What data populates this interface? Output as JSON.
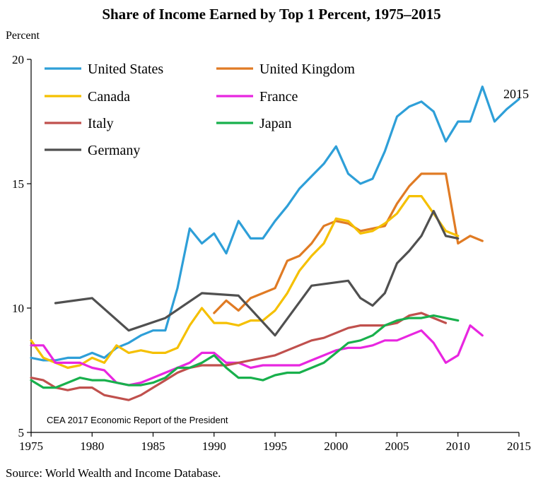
{
  "chart_data": {
    "type": "line",
    "title": "Share of Income Earned by Top 1 Percent, 1975–2015",
    "ylabel": "Percent",
    "xlabel": "",
    "xlim": [
      1975,
      2015
    ],
    "ylim": [
      5,
      20
    ],
    "x_ticks": [
      1975,
      1980,
      1985,
      1990,
      1995,
      2000,
      2005,
      2010,
      2015
    ],
    "y_ticks": [
      5,
      10,
      15,
      20
    ],
    "grid": false,
    "legend_position": "top-left",
    "annotation": "2015",
    "watermark": "CEA 2017 Economic Report of the President",
    "source": "Source: World Wealth and Income Database.",
    "series": [
      {
        "name": "United States",
        "color": "#2e9fd8",
        "x": [
          1975,
          1976,
          1977,
          1978,
          1979,
          1980,
          1981,
          1982,
          1983,
          1984,
          1985,
          1986,
          1987,
          1988,
          1989,
          1990,
          1991,
          1992,
          1993,
          1994,
          1995,
          1996,
          1997,
          1998,
          1999,
          2000,
          2001,
          2002,
          2003,
          2004,
          2005,
          2006,
          2007,
          2008,
          2009,
          2010,
          2011,
          2012,
          2013,
          2014,
          2015
        ],
        "y": [
          8.0,
          7.9,
          7.9,
          8.0,
          8.0,
          8.2,
          8.0,
          8.4,
          8.6,
          8.9,
          9.1,
          9.1,
          10.8,
          13.2,
          12.6,
          13.0,
          12.2,
          13.5,
          12.8,
          12.8,
          13.5,
          14.1,
          14.8,
          15.3,
          15.8,
          16.5,
          15.4,
          15.0,
          15.2,
          16.3,
          17.7,
          18.1,
          18.3,
          17.9,
          16.7,
          17.5,
          17.5,
          18.9,
          17.5,
          18.0,
          18.4
        ]
      },
      {
        "name": "United Kingdom",
        "color": "#e07b24",
        "x": [
          1990,
          1991,
          1992,
          1993,
          1994,
          1995,
          1996,
          1997,
          1998,
          1999,
          2000,
          2001,
          2002,
          2003,
          2004,
          2005,
          2006,
          2007,
          2008,
          2009,
          2010,
          2011,
          2012
        ],
        "y": [
          9.8,
          10.3,
          9.9,
          10.4,
          10.6,
          10.8,
          11.9,
          12.1,
          12.6,
          13.3,
          13.5,
          13.4,
          13.1,
          13.2,
          13.3,
          14.2,
          14.9,
          15.4,
          15.4,
          15.4,
          12.6,
          12.9,
          12.7
        ]
      },
      {
        "name": "Canada",
        "color": "#f5c000",
        "x": [
          1975,
          1976,
          1977,
          1978,
          1979,
          1980,
          1981,
          1982,
          1983,
          1984,
          1985,
          1986,
          1987,
          1988,
          1989,
          1990,
          1991,
          1992,
          1993,
          1994,
          1995,
          1996,
          1997,
          1998,
          1999,
          2000,
          2001,
          2002,
          2003,
          2004,
          2005,
          2006,
          2007,
          2008,
          2009,
          2010
        ],
        "y": [
          8.7,
          8.0,
          7.8,
          7.6,
          7.7,
          8.0,
          7.8,
          8.5,
          8.2,
          8.3,
          8.2,
          8.2,
          8.4,
          9.3,
          10.0,
          9.4,
          9.4,
          9.3,
          9.5,
          9.5,
          9.9,
          10.6,
          11.5,
          12.1,
          12.6,
          13.6,
          13.5,
          13.0,
          13.1,
          13.4,
          13.8,
          14.5,
          14.5,
          13.8,
          13.1,
          12.9
        ]
      },
      {
        "name": "France",
        "color": "#e826e0",
        "x": [
          1975,
          1976,
          1977,
          1978,
          1979,
          1980,
          1981,
          1982,
          1983,
          1984,
          1985,
          1986,
          1987,
          1988,
          1989,
          1990,
          1991,
          1992,
          1993,
          1994,
          1995,
          1996,
          1997,
          1998,
          1999,
          2000,
          2001,
          2002,
          2003,
          2004,
          2005,
          2006,
          2007,
          2008,
          2009,
          2010,
          2011,
          2012
        ],
        "y": [
          8.5,
          8.5,
          7.8,
          7.8,
          7.8,
          7.6,
          7.5,
          7.0,
          6.9,
          7.0,
          7.2,
          7.4,
          7.6,
          7.8,
          8.2,
          8.2,
          7.8,
          7.8,
          7.6,
          7.7,
          7.7,
          7.7,
          7.7,
          7.9,
          8.1,
          8.3,
          8.4,
          8.4,
          8.5,
          8.7,
          8.7,
          8.9,
          9.1,
          8.6,
          7.8,
          8.1,
          9.3,
          8.9
        ]
      },
      {
        "name": "Italy",
        "color": "#c0504d",
        "x": [
          1975,
          1976,
          1977,
          1978,
          1979,
          1980,
          1981,
          1982,
          1983,
          1984,
          1985,
          1986,
          1987,
          1988,
          1989,
          1990,
          1991,
          1992,
          1993,
          1994,
          1995,
          1996,
          1997,
          1998,
          1999,
          2000,
          2001,
          2002,
          2003,
          2004,
          2005,
          2006,
          2007,
          2008,
          2009
        ],
        "y": [
          7.2,
          7.1,
          6.8,
          6.7,
          6.8,
          6.8,
          6.5,
          6.4,
          6.3,
          6.5,
          6.8,
          7.1,
          7.4,
          7.6,
          7.7,
          7.7,
          7.7,
          7.8,
          7.9,
          8.0,
          8.1,
          8.3,
          8.5,
          8.7,
          8.8,
          9.0,
          9.2,
          9.3,
          9.3,
          9.3,
          9.4,
          9.7,
          9.8,
          9.6,
          9.4
        ]
      },
      {
        "name": "Japan",
        "color": "#18b04c",
        "x": [
          1975,
          1976,
          1977,
          1978,
          1979,
          1980,
          1981,
          1982,
          1983,
          1984,
          1985,
          1986,
          1987,
          1988,
          1989,
          1990,
          1991,
          1992,
          1993,
          1994,
          1995,
          1996,
          1997,
          1998,
          1999,
          2000,
          2001,
          2002,
          2003,
          2004,
          2005,
          2006,
          2007,
          2008,
          2009,
          2010
        ],
        "y": [
          7.1,
          6.8,
          6.8,
          7.0,
          7.2,
          7.1,
          7.1,
          7.0,
          6.9,
          6.9,
          7.0,
          7.2,
          7.6,
          7.6,
          7.8,
          8.1,
          7.6,
          7.2,
          7.2,
          7.1,
          7.3,
          7.4,
          7.4,
          7.6,
          7.8,
          8.2,
          8.6,
          8.7,
          8.9,
          9.3,
          9.5,
          9.6,
          9.6,
          9.7,
          9.6,
          9.5
        ]
      },
      {
        "name": "Germany",
        "color": "#505050",
        "x": [
          1977,
          1980,
          1983,
          1986,
          1989,
          1992,
          1995,
          1998,
          2001,
          2002,
          2003,
          2004,
          2005,
          2006,
          2007,
          2008,
          2009,
          2010
        ],
        "y": [
          10.2,
          10.4,
          9.1,
          9.6,
          10.6,
          10.5,
          8.9,
          10.9,
          11.1,
          10.4,
          10.1,
          10.6,
          11.8,
          12.3,
          12.9,
          13.9,
          12.9,
          12.8
        ]
      }
    ]
  }
}
